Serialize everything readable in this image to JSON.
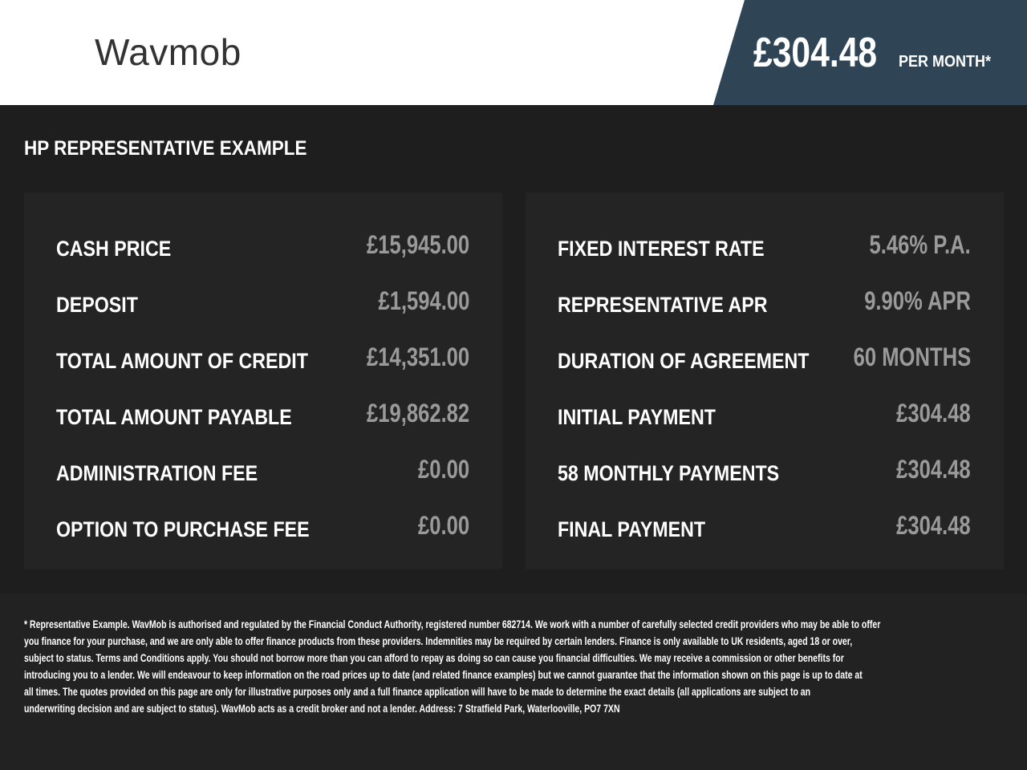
{
  "header": {
    "logo": "Wavmob",
    "monthly_price": "£304.48",
    "per_month_label": "PER MONTH*",
    "brand_color": "#2f4556"
  },
  "title": "HP REPRESENTATIVE EXAMPLE",
  "left_rows": [
    {
      "label": "CASH PRICE",
      "value": "£15,945.00"
    },
    {
      "label": "DEPOSIT",
      "value": "£1,594.00"
    },
    {
      "label": "TOTAL AMOUNT OF CREDIT",
      "value": "£14,351.00"
    },
    {
      "label": "TOTAL AMOUNT PAYABLE",
      "value": "£19,862.82"
    },
    {
      "label": "ADMINISTRATION FEE",
      "value": "£0.00"
    },
    {
      "label": "OPTION TO PURCHASE FEE",
      "value": "£0.00"
    }
  ],
  "right_rows": [
    {
      "label": "FIXED INTEREST RATE",
      "value": "5.46% P.A."
    },
    {
      "label": "REPRESENTATIVE APR",
      "value": "9.90% APR"
    },
    {
      "label": "DURATION OF AGREEMENT",
      "value": "60 MONTHS"
    },
    {
      "label": "INITIAL PAYMENT",
      "value": "£304.48"
    },
    {
      "label": "58 MONTHLY PAYMENTS",
      "value": "£304.48"
    },
    {
      "label": "FINAL PAYMENT",
      "value": "£304.48"
    }
  ],
  "disclaimer_lines": [
    "* Representative Example. WavMob is authorised and regulated by the Financial Conduct Authority, registered number 682714. We work with a number of carefully selected credit providers who may be able to offer",
    "you finance for your purchase, and we are only able to offer finance products from these providers. Indemnities may be required by certain lenders. Finance is only available to UK residents, aged 18 or over,",
    "subject to status. Terms and Conditions apply. You should not borrow more than you can afford to repay as doing so can cause you financial difficulties. We may receive a commission or other benefits for",
    "introducing you to a lender. We will endeavour to keep information on the road prices up to date (and related finance examples) but we cannot guarantee that the information shown on this page is up to date at",
    "all times. The quotes provided on this page are only for illustrative purposes only and a full finance application will have to be made to determine the exact details (all applications are subject to an",
    "underwriting decision and are subject to status). WavMob acts as a credit broker and not a lender. Address: 7 Stratfield Park, Waterlooville, PO7 7XN"
  ]
}
